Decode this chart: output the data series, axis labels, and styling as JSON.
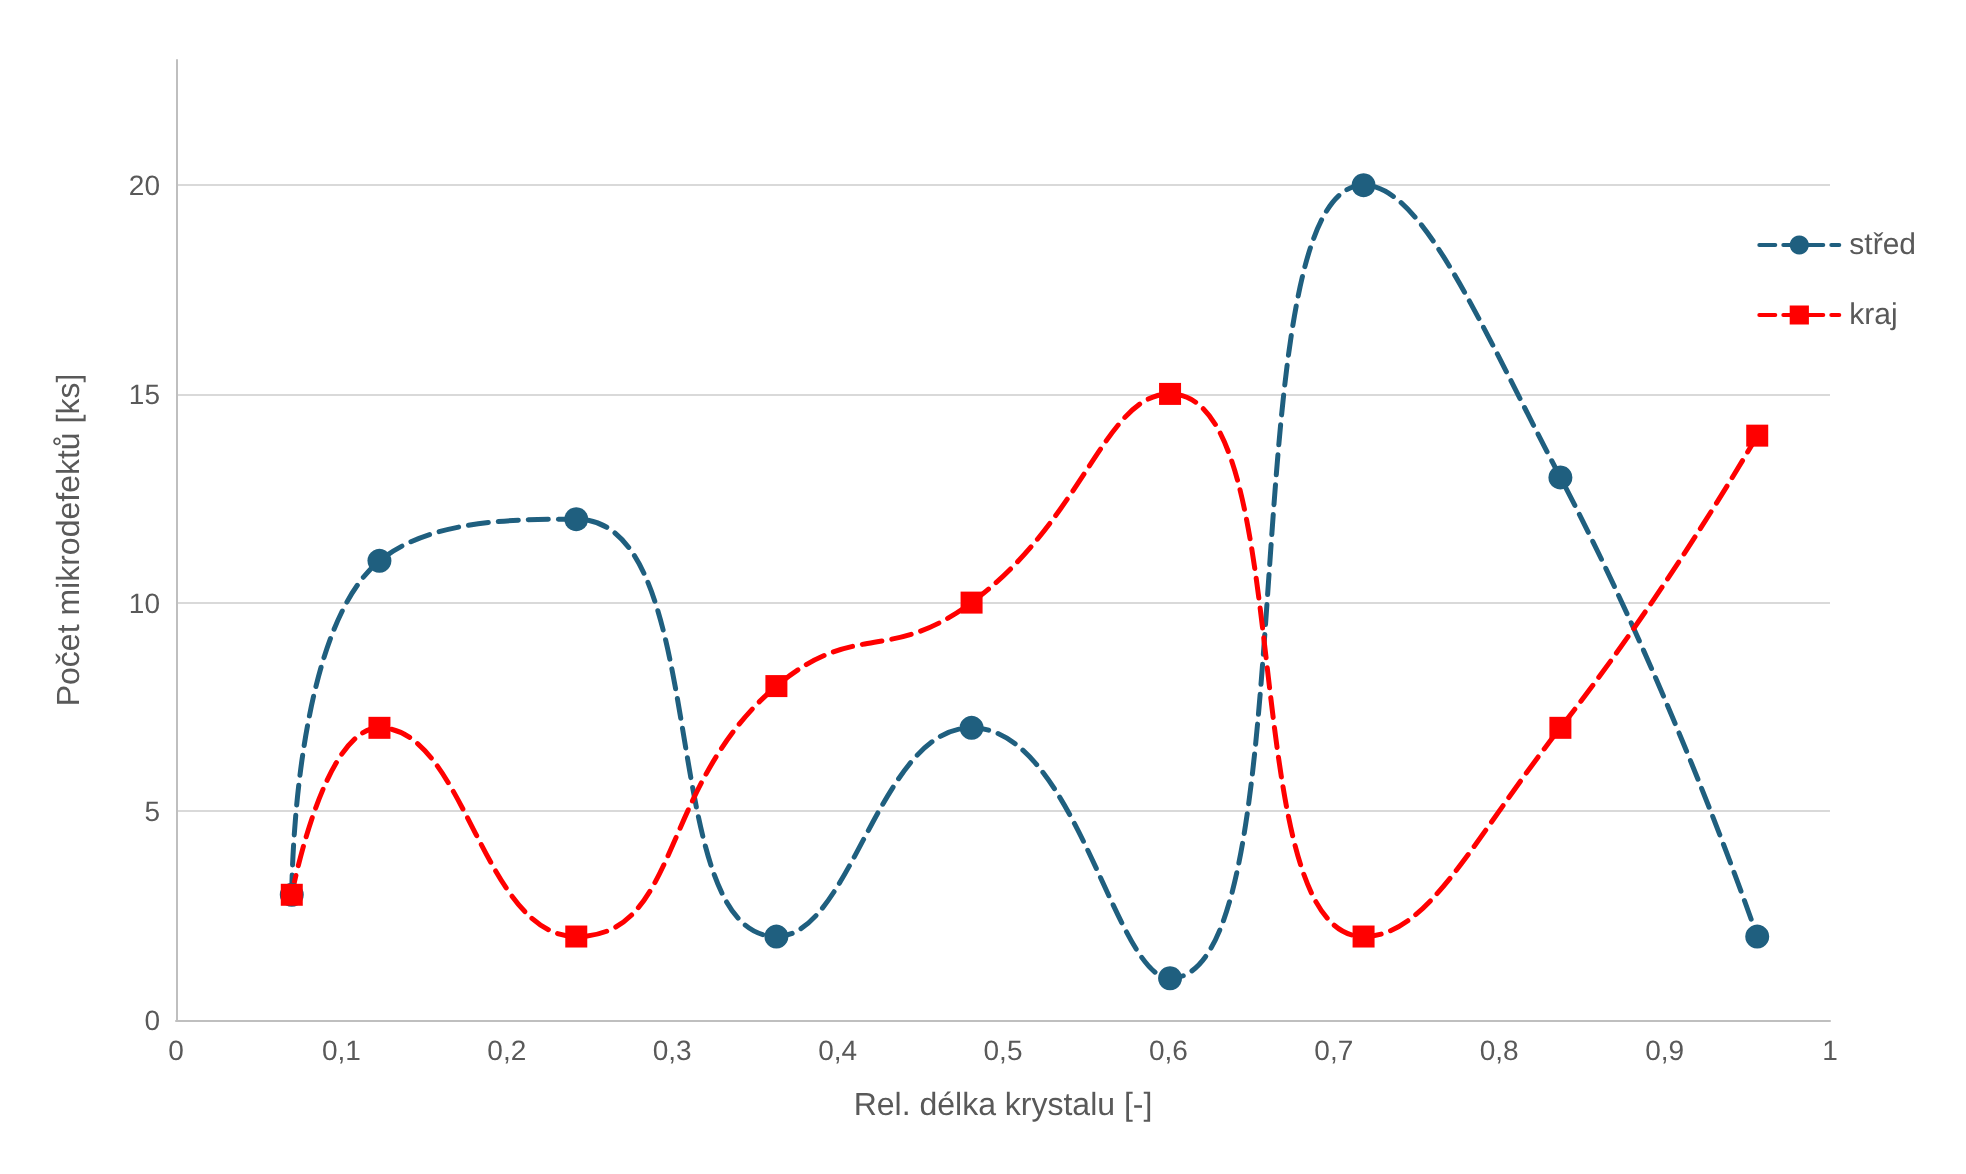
{
  "chart_data": {
    "type": "line",
    "xlabel": "Rel. délka krystalu [-]",
    "ylabel": "Počet mikrodefektů [ks]",
    "x": [
      0.07,
      0.123,
      0.242,
      0.363,
      0.481,
      0.601,
      0.718,
      0.837,
      0.956
    ],
    "series": [
      {
        "name": "střed",
        "color": "#1f5f7f",
        "marker": "circle",
        "values": [
          3,
          11,
          12,
          2,
          7,
          1,
          20,
          13,
          2
        ]
      },
      {
        "name": "kraj",
        "color": "#ff0000",
        "marker": "square",
        "values": [
          3,
          7,
          2,
          8,
          10,
          15,
          2,
          7,
          14
        ]
      }
    ],
    "xlim": [
      0,
      1
    ],
    "xticks": [
      0,
      {
        "value": 0.1,
        "label": "0,1"
      },
      {
        "value": 0.2,
        "label": "0,2"
      },
      {
        "value": 0.3,
        "label": "0,3"
      },
      {
        "value": 0.4,
        "label": "0,4"
      },
      {
        "value": 0.5,
        "label": "0,5"
      },
      {
        "value": 0.6,
        "label": "0,6"
      },
      {
        "value": 0.7,
        "label": "0,7"
      },
      {
        "value": 0.8,
        "label": "0,8"
      },
      {
        "value": 0.9,
        "label": "0,9"
      },
      1
    ],
    "ylim": [
      0,
      23
    ],
    "yticks": [
      0,
      5,
      10,
      15,
      20
    ],
    "grid": "y",
    "legend": "right",
    "line_style": "dashed"
  }
}
